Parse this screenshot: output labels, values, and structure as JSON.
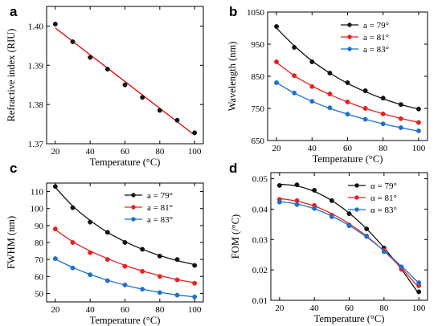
{
  "figure": {
    "panels": [
      "a",
      "b",
      "c",
      "d"
    ]
  },
  "chart_data": [
    {
      "id": "a",
      "panel_label": "a",
      "type": "scatter",
      "xlabel": "Temperature (°C)",
      "ylabel": "Refractive index (RIU)",
      "xlim": [
        15,
        105
      ],
      "ylim": [
        1.37,
        1.405
      ],
      "xticks": [
        20,
        40,
        60,
        80,
        100
      ],
      "yticks": [
        1.37,
        1.38,
        1.39,
        1.4
      ],
      "ytick_labels": [
        "1.37",
        "1.38",
        "1.39",
        "1.40"
      ],
      "fit": "linear",
      "series": [
        {
          "color": "#e00000",
          "marker_color": "#111111",
          "x": [
            20,
            30,
            40,
            50,
            60,
            70,
            80,
            90,
            100
          ],
          "y": [
            1.4005,
            1.396,
            1.392,
            1.389,
            1.385,
            1.3818,
            1.3785,
            1.376,
            1.3728
          ],
          "fit_x": [
            20,
            100
          ],
          "fit_y": [
            1.3995,
            1.3722
          ]
        }
      ],
      "legend": []
    },
    {
      "id": "b",
      "panel_label": "b",
      "type": "scatter",
      "xlabel": "Temperature (°C)",
      "ylabel": "Wavelength (nm)",
      "xlim": [
        15,
        105
      ],
      "ylim": [
        650,
        1050
      ],
      "xticks": [
        20,
        40,
        60,
        80,
        100
      ],
      "yticks": [
        650,
        750,
        850,
        950,
        1050
      ],
      "ytick_labels": [
        "650",
        "750",
        "850",
        "950",
        "1050"
      ],
      "legend_position": "top-right",
      "series": [
        {
          "name": "a = 79°",
          "color": "#111111",
          "x": [
            20,
            30,
            40,
            50,
            60,
            70,
            80,
            90,
            100
          ],
          "y": [
            1005,
            940,
            895,
            860,
            830,
            805,
            782,
            762,
            748
          ],
          "fit_x": [
            20,
            30,
            40,
            50,
            60,
            70,
            80,
            90,
            100
          ],
          "fit_y": [
            1000,
            945,
            898,
            860,
            828,
            802,
            780,
            762,
            748
          ]
        },
        {
          "name": "a = 81°",
          "color": "#e8201f",
          "x": [
            20,
            30,
            40,
            50,
            60,
            70,
            80,
            90,
            100
          ],
          "y": [
            895,
            852,
            818,
            795,
            770,
            750,
            733,
            718,
            706
          ],
          "fit_x": [
            20,
            30,
            40,
            50,
            60,
            70,
            80,
            90,
            100
          ],
          "fit_y": [
            893,
            852,
            820,
            793,
            770,
            750,
            733,
            719,
            706
          ]
        },
        {
          "name": "a = 83°",
          "color": "#1f6fcf",
          "x": [
            20,
            30,
            40,
            50,
            60,
            70,
            80,
            90,
            100
          ],
          "y": [
            830,
            798,
            772,
            752,
            732,
            716,
            702,
            690,
            680
          ],
          "fit_x": [
            20,
            30,
            40,
            50,
            60,
            70,
            80,
            90,
            100
          ],
          "fit_y": [
            830,
            798,
            772,
            750,
            732,
            716,
            702,
            690,
            679
          ]
        }
      ]
    },
    {
      "id": "c",
      "panel_label": "c",
      "type": "scatter",
      "xlabel": "Temperature (°C)",
      "ylabel": "FWHM (nm)",
      "xlim": [
        15,
        105
      ],
      "ylim": [
        45,
        115
      ],
      "xticks": [
        20,
        40,
        60,
        80,
        100
      ],
      "yticks": [
        50,
        60,
        70,
        80,
        90,
        100,
        110
      ],
      "ytick_labels": [
        "50",
        "60",
        "70",
        "80",
        "90",
        "100",
        "110"
      ],
      "legend_position": "top-right",
      "series": [
        {
          "name": "a = 79°",
          "color": "#111111",
          "x": [
            20,
            30,
            40,
            50,
            60,
            70,
            80,
            90,
            100
          ],
          "y": [
            113,
            100.5,
            92,
            86,
            80,
            76,
            72,
            70,
            66.5
          ],
          "fit_x": [
            20,
            30,
            40,
            50,
            60,
            70,
            80,
            90,
            100
          ],
          "fit_y": [
            112.5,
            101.5,
            93,
            86,
            80.5,
            76,
            72.3,
            69.3,
            67
          ]
        },
        {
          "name": "a = 81°",
          "color": "#e8201f",
          "x": [
            20,
            30,
            40,
            50,
            60,
            70,
            80,
            90,
            100
          ],
          "y": [
            88,
            80,
            74,
            70,
            66,
            63,
            60,
            58,
            56
          ],
          "fit_x": [
            20,
            30,
            40,
            50,
            60,
            70,
            80,
            90,
            100
          ],
          "fit_y": [
            87.5,
            80.5,
            75,
            70.5,
            66.5,
            63.2,
            60.5,
            58.2,
            56.3
          ]
        },
        {
          "name": "a = 83°",
          "color": "#1f6fcf",
          "x": [
            20,
            30,
            40,
            50,
            60,
            70,
            80,
            90,
            100
          ],
          "y": [
            70.5,
            65,
            61,
            57.5,
            55,
            52.5,
            50.5,
            49,
            48
          ],
          "fit_x": [
            20,
            30,
            40,
            50,
            60,
            70,
            80,
            90,
            100
          ],
          "fit_y": [
            70.2,
            65.3,
            61.2,
            57.8,
            54.9,
            52.5,
            50.6,
            49.1,
            47.9
          ]
        }
      ]
    },
    {
      "id": "d",
      "panel_label": "d",
      "type": "scatter",
      "xlabel": "Temperature (°C)",
      "ylabel": "FOM (/°C)",
      "xlim": [
        15,
        105
      ],
      "ylim": [
        0.01,
        0.052
      ],
      "xticks": [
        20,
        40,
        60,
        80,
        100
      ],
      "yticks": [
        0.01,
        0.02,
        0.03,
        0.04,
        0.05
      ],
      "ytick_labels": [
        "0.01",
        "0.02",
        "0.03",
        "0.04",
        "0.05"
      ],
      "legend_position": "top-right",
      "series": [
        {
          "name": "α = 79°",
          "color": "#111111",
          "x": [
            20,
            30,
            40,
            50,
            60,
            70,
            80,
            90,
            100
          ],
          "y": [
            0.0478,
            0.048,
            0.0462,
            0.0428,
            0.0385,
            0.0335,
            0.0272,
            0.0205,
            0.0128
          ],
          "fit_x": [
            20,
            30,
            40,
            50,
            60,
            70,
            80,
            90,
            100
          ],
          "fit_y": [
            0.0482,
            0.0476,
            0.0458,
            0.0428,
            0.0387,
            0.0335,
            0.0273,
            0.0202,
            0.0121
          ]
        },
        {
          "name": "α = 81°",
          "color": "#e8201f",
          "x": [
            20,
            30,
            40,
            50,
            60,
            70,
            80,
            90,
            100
          ],
          "y": [
            0.0432,
            0.0428,
            0.0412,
            0.038,
            0.0348,
            0.031,
            0.0265,
            0.0202,
            0.0148
          ],
          "fit_x": [
            20,
            30,
            40,
            50,
            60,
            70,
            80,
            90,
            100
          ],
          "fit_y": [
            0.0435,
            0.0426,
            0.041,
            0.0385,
            0.0352,
            0.0311,
            0.0262,
            0.0206,
            0.0142
          ]
        },
        {
          "name": "α = 83°",
          "color": "#1f6fcf",
          "x": [
            20,
            30,
            40,
            50,
            60,
            70,
            80,
            90,
            100
          ],
          "y": [
            0.0423,
            0.0415,
            0.0402,
            0.0375,
            0.0345,
            0.0312,
            0.026,
            0.021,
            0.0158
          ],
          "fit_x": [
            20,
            30,
            40,
            50,
            60,
            70,
            80,
            90,
            100
          ],
          "fit_y": [
            0.0425,
            0.0417,
            0.0401,
            0.0377,
            0.0346,
            0.0308,
            0.0263,
            0.0212,
            0.0157
          ]
        }
      ]
    }
  ]
}
